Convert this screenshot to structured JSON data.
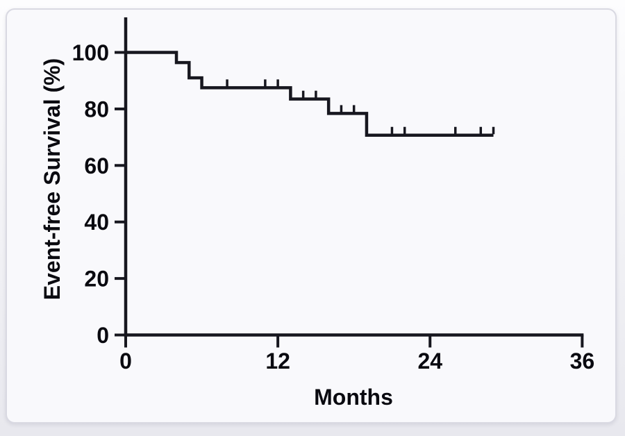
{
  "figure": {
    "kind": "kaplan-meier-survival-figure",
    "colors": {
      "line": "#17171f",
      "text": "#0a0a10",
      "card_bg": "#f9f9fc",
      "card_border": "#d9d9e2",
      "page_top": "#fdfdfe",
      "page_bottom": "#e8e8ee"
    }
  },
  "chart_data": {
    "type": "line",
    "chart_kind": "kaplan-meier-step-curve",
    "title": "",
    "xlabel": "Months",
    "ylabel": "Event-free Survival (%)",
    "xlim": [
      0,
      36
    ],
    "ylim": [
      0,
      100
    ],
    "xticks": [
      0,
      12,
      24,
      36
    ],
    "yticks": [
      0,
      20,
      40,
      60,
      80,
      100
    ],
    "grid": false,
    "legend_position": "none",
    "series": [
      {
        "name": "event-free-survival",
        "color": "#17171f",
        "start": {
          "t": 0,
          "s": 100
        },
        "drops": [
          {
            "t": 4,
            "s": 96.4
          },
          {
            "t": 5,
            "s": 91.0
          },
          {
            "t": 6,
            "s": 87.5
          },
          {
            "t": 13,
            "s": 83.5
          },
          {
            "t": 16,
            "s": 78.4
          },
          {
            "t": 19,
            "s": 70.7
          }
        ],
        "end_t": 29,
        "censor_marks": [
          {
            "t": 8,
            "s": 87.5
          },
          {
            "t": 11,
            "s": 87.5
          },
          {
            "t": 12,
            "s": 87.5
          },
          {
            "t": 14,
            "s": 83.5
          },
          {
            "t": 15,
            "s": 83.5
          },
          {
            "t": 17,
            "s": 78.4
          },
          {
            "t": 18,
            "s": 78.4
          },
          {
            "t": 21,
            "s": 70.7
          },
          {
            "t": 22,
            "s": 70.7
          },
          {
            "t": 26,
            "s": 70.7
          },
          {
            "t": 28,
            "s": 70.7
          },
          {
            "t": 29,
            "s": 70.7
          }
        ]
      }
    ]
  }
}
